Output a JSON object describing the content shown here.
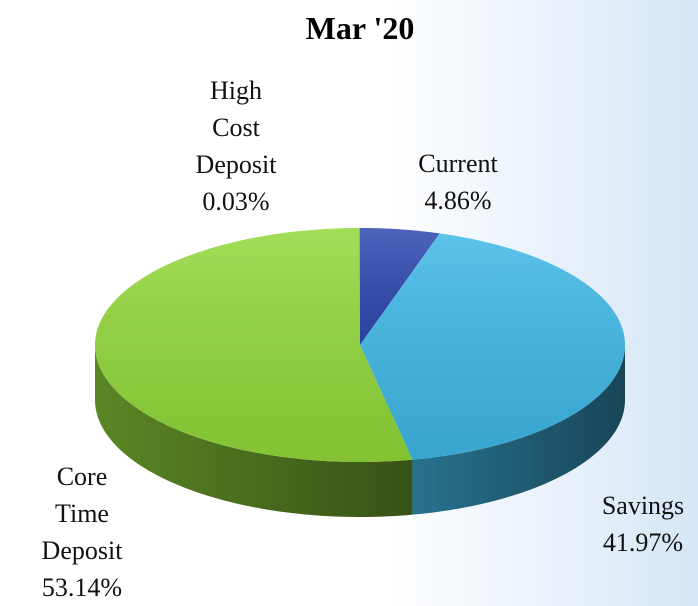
{
  "chart_data": {
    "type": "pie",
    "title": "Mar '20",
    "categories": [
      "Current",
      "Savings",
      "Core Time Deposit",
      "High Cost Deposit"
    ],
    "values": [
      4.86,
      41.97,
      53.14,
      0.03
    ],
    "value_labels": [
      "4.86%",
      "41.97%",
      "53.14%",
      "0.03%"
    ],
    "colors": [
      "#2e48b0",
      "#3fb8e6",
      "#92d83a",
      "#c0504d"
    ]
  }
}
